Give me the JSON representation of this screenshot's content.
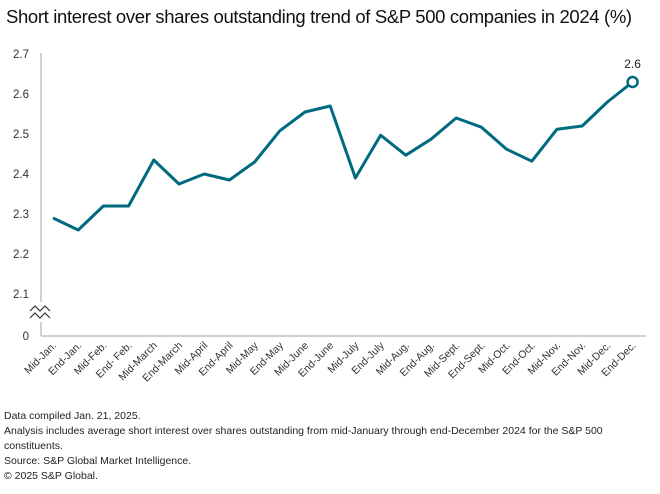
{
  "chart_data": {
    "type": "line",
    "title": "Short interest over shares outstanding trend of S&P 500 companies in 2024 (%)",
    "xlabel": "",
    "ylabel": "",
    "categories": [
      "Mid-Jan.",
      "End-Jan.",
      "Mid-Feb.",
      "End- Feb.",
      "Mid-March",
      "End-March",
      "Mid-April",
      "End-April",
      "Mid-May",
      "End-May",
      "Mid-June",
      "End-June",
      "Mid-July",
      "End-July",
      "Mid-Aug.",
      "End-Aug.",
      "Mid-Sept.",
      "End-Sept.",
      "Mid-Oct.",
      "End-Oct.",
      "Mid-Nov.",
      "End-Nov.",
      "Mid-Dec.",
      "End-Dec."
    ],
    "series": [
      {
        "name": "Short interest over shares outstanding (%)",
        "color": "#006b80",
        "values": [
          2.29,
          2.26,
          2.32,
          2.32,
          2.435,
          2.375,
          2.4,
          2.385,
          2.43,
          2.508,
          2.555,
          2.57,
          2.39,
          2.497,
          2.447,
          2.487,
          2.54,
          2.517,
          2.462,
          2.432,
          2.512,
          2.52,
          2.58,
          2.63
        ]
      }
    ],
    "ylim": [
      2.1,
      2.7
    ],
    "y_axis_break": true,
    "yticks": [
      "0",
      "2.1",
      "2.2",
      "2.3",
      "2.4",
      "2.5",
      "2.6",
      "2.7"
    ],
    "ytick_values": [
      2.0,
      2.1,
      2.2,
      2.3,
      2.4,
      2.5,
      2.6,
      2.7
    ],
    "annotations": [
      {
        "category": "End-Dec.",
        "label": "2.6"
      }
    ],
    "grid": false,
    "legend": "none"
  },
  "footer": {
    "line1": "Data compiled Jan. 21, 2025.",
    "line2": "Analysis includes average short interest over shares outstanding from mid-January through end-December 2024 for the S&P 500 constituents.",
    "line3": "Source: S&P Global Market Intelligence.",
    "line4": "© 2025 S&P Global."
  }
}
